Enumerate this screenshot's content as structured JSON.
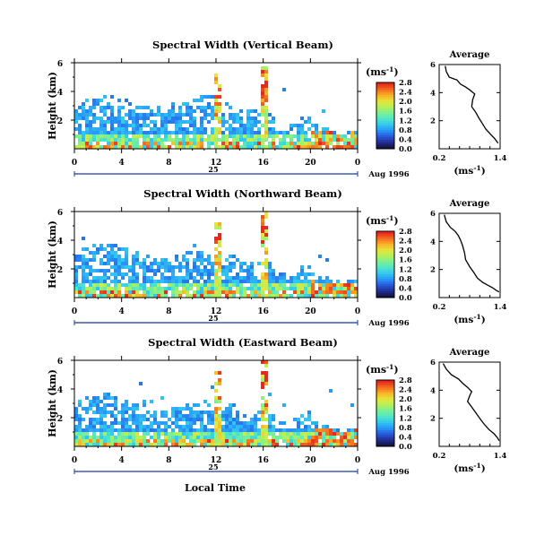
{
  "figure": {
    "ylabel": "Height (km)",
    "xlabel": "Local Time",
    "unit_label": "(ms",
    "unit_exp": "-1",
    "unit_close": ")",
    "date_label": "Aug 1996",
    "day_label": "25",
    "avg_title": "Average",
    "avg_xlabel": "(ms",
    "avg_xlabel_close": ")"
  },
  "chart_data": [
    {
      "type": "heatmap",
      "title": "Spectral Width (Vertical Beam)",
      "x_ticks": [
        "0",
        "4",
        "8",
        "12",
        "16",
        "20",
        "0"
      ],
      "xlim": [
        0,
        24
      ],
      "y_ticks": [
        "2",
        "4",
        "6"
      ],
      "ylim": [
        0,
        6
      ],
      "colorbar_ticks": [
        "0.0",
        "0.4",
        "0.8",
        "1.2",
        "1.6",
        "2.0",
        "2.4",
        "2.8"
      ],
      "colorbar_range": [
        0,
        2.8
      ]
    },
    {
      "type": "heatmap",
      "title": "Spectral Width (Northward Beam)",
      "x_ticks": [
        "0",
        "4",
        "8",
        "12",
        "16",
        "20",
        "0"
      ],
      "xlim": [
        0,
        24
      ],
      "y_ticks": [
        "2",
        "4",
        "6"
      ],
      "ylim": [
        0,
        6
      ],
      "colorbar_ticks": [
        "0.0",
        "0.4",
        "0.8",
        "1.2",
        "1.6",
        "2.0",
        "2.4",
        "2.8"
      ],
      "colorbar_range": [
        0,
        2.8
      ]
    },
    {
      "type": "heatmap",
      "title": "Spectral Width (Eastward Beam)",
      "x_ticks": [
        "0",
        "4",
        "8",
        "12",
        "16",
        "20",
        "0"
      ],
      "xlim": [
        0,
        24
      ],
      "y_ticks": [
        "2",
        "4",
        "6"
      ],
      "ylim": [
        0,
        6
      ],
      "colorbar_ticks": [
        "0.0",
        "0.4",
        "0.8",
        "1.2",
        "1.6",
        "2.0",
        "2.4",
        "2.8"
      ],
      "colorbar_range": [
        0,
        2.8
      ]
    },
    {
      "type": "line",
      "title": "Average",
      "xlim": [
        0.2,
        1.4
      ],
      "x_ticks": [
        "0.2",
        "1.4"
      ],
      "y_ticks": [
        "2",
        "4",
        "6"
      ],
      "ylim": [
        0,
        6
      ],
      "x": [
        0.32,
        0.34,
        0.4,
        0.55,
        0.62,
        0.72,
        0.8,
        0.9,
        0.86,
        0.84,
        0.92,
        0.98,
        1.05,
        1.12,
        1.22,
        1.3,
        1.36
      ],
      "y": [
        5.9,
        5.5,
        5.1,
        4.9,
        4.6,
        4.4,
        4.2,
        3.9,
        3.5,
        3.0,
        2.6,
        2.2,
        1.8,
        1.4,
        1.0,
        0.7,
        0.4
      ]
    },
    {
      "type": "line",
      "title": "Average",
      "xlim": [
        0.2,
        1.4
      ],
      "x_ticks": [
        "0.2",
        "1.4"
      ],
      "y_ticks": [
        "2",
        "4",
        "6"
      ],
      "ylim": [
        0,
        6
      ],
      "x": [
        0.3,
        0.34,
        0.42,
        0.52,
        0.58,
        0.62,
        0.66,
        0.7,
        0.72,
        0.8,
        0.88,
        0.95,
        1.05,
        1.15,
        1.25,
        1.33,
        1.38
      ],
      "y": [
        5.9,
        5.4,
        5.0,
        4.7,
        4.4,
        4.1,
        3.7,
        3.2,
        2.7,
        2.2,
        1.8,
        1.4,
        1.1,
        0.9,
        0.7,
        0.5,
        0.4
      ]
    },
    {
      "type": "line",
      "title": "Average",
      "xlim": [
        0.2,
        1.4
      ],
      "x_ticks": [
        "0.2",
        "1.4"
      ],
      "y_ticks": [
        "2",
        "4",
        "6"
      ],
      "ylim": [
        0,
        6
      ],
      "x": [
        0.28,
        0.34,
        0.44,
        0.58,
        0.66,
        0.76,
        0.84,
        0.8,
        0.76,
        0.84,
        0.92,
        1.0,
        1.08,
        1.18,
        1.28,
        1.35,
        1.38
      ],
      "y": [
        5.9,
        5.5,
        5.1,
        4.8,
        4.5,
        4.2,
        3.9,
        3.6,
        3.2,
        2.8,
        2.4,
        2.0,
        1.6,
        1.2,
        0.9,
        0.6,
        0.4
      ]
    }
  ]
}
